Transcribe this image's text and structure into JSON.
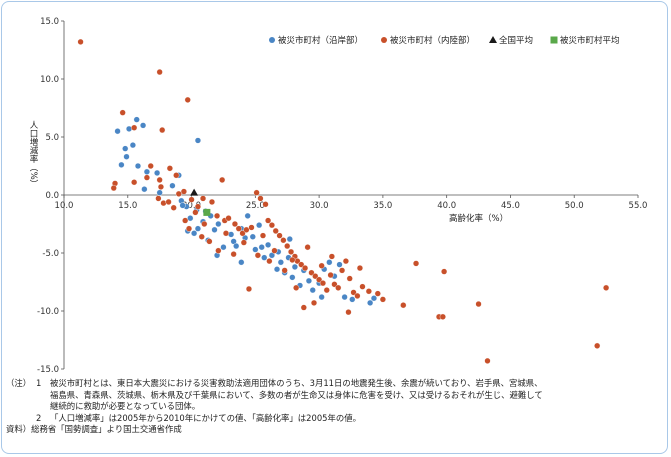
{
  "chart_data": {
    "type": "scatter",
    "title": "",
    "xlabel": "高齢化率（%）",
    "ylabel": "人口増減率（%）",
    "xlim": [
      10.0,
      55.0
    ],
    "ylim": [
      -15.0,
      15.0
    ],
    "x_ticks": [
      "10.0",
      "15.0",
      "20.0",
      "25.0",
      "30.0",
      "35.0",
      "40.0",
      "45.0",
      "50.0",
      "55.0"
    ],
    "y_ticks": [
      "15.0",
      "10.0",
      "5.0",
      "0.0",
      "-5.0",
      "-10.0",
      "-15.0"
    ],
    "grid": false,
    "legend_position": "top-right",
    "series": [
      {
        "name": "被災市町村（沿岸部）",
        "color": "#4a86c5",
        "marker": "circle",
        "points": [
          [
            14.2,
            5.5
          ],
          [
            15.1,
            5.7
          ],
          [
            15.7,
            6.5
          ],
          [
            15.4,
            4.3
          ],
          [
            14.8,
            4.0
          ],
          [
            14.9,
            3.3
          ],
          [
            15.8,
            2.5
          ],
          [
            16.5,
            2.0
          ],
          [
            17.3,
            1.9
          ],
          [
            19.0,
            1.7
          ],
          [
            20.5,
            4.7
          ],
          [
            18.5,
            0.8
          ],
          [
            17.5,
            0.2
          ],
          [
            16.3,
            0.5
          ],
          [
            19.2,
            -0.5
          ],
          [
            19.6,
            -1.0
          ],
          [
            19.7,
            -3.1
          ],
          [
            20.2,
            -3.3
          ],
          [
            20.5,
            -2.9
          ],
          [
            21.1,
            -1.4
          ],
          [
            21.5,
            -1.8
          ],
          [
            22.1,
            -2.5
          ],
          [
            22.5,
            -4.5
          ],
          [
            23.1,
            -3.4
          ],
          [
            23.3,
            -4.0
          ],
          [
            23.5,
            -4.4
          ],
          [
            23.9,
            -5.8
          ],
          [
            24.2,
            -3.7
          ],
          [
            24.4,
            -1.8
          ],
          [
            24.8,
            -3.6
          ],
          [
            25.0,
            -4.7
          ],
          [
            25.3,
            -2.6
          ],
          [
            25.5,
            -4.5
          ],
          [
            25.7,
            -5.4
          ],
          [
            26.0,
            -4.3
          ],
          [
            26.3,
            -5.2
          ],
          [
            26.7,
            -6.4
          ],
          [
            27.0,
            -5.8
          ],
          [
            27.3,
            -6.7
          ],
          [
            27.6,
            -5.4
          ],
          [
            27.9,
            -7.1
          ],
          [
            28.1,
            -6.2
          ],
          [
            28.5,
            -7.8
          ],
          [
            28.8,
            -6.5
          ],
          [
            29.2,
            -7.4
          ],
          [
            29.5,
            -8.2
          ],
          [
            30.0,
            -7.6
          ],
          [
            30.2,
            -8.8
          ],
          [
            30.4,
            -6.4
          ],
          [
            30.8,
            -5.8
          ],
          [
            31.2,
            -7.0
          ],
          [
            31.6,
            -6.0
          ],
          [
            32.0,
            -8.8
          ],
          [
            32.6,
            -9.0
          ],
          [
            34.0,
            -9.3
          ],
          [
            34.3,
            -8.9
          ],
          [
            22.0,
            -5.2
          ],
          [
            21.3,
            -3.9
          ],
          [
            20.9,
            -2.3
          ],
          [
            23.9,
            -2.9
          ],
          [
            26.8,
            -4.9
          ],
          [
            27.7,
            -3.8
          ],
          [
            19.9,
            -2.0
          ],
          [
            19.3,
            -0.9
          ],
          [
            21.8,
            -3.0
          ],
          [
            20.4,
            -1.3
          ],
          [
            16.2,
            6.0
          ],
          [
            14.5,
            2.6
          ]
        ]
      },
      {
        "name": "被災市町村（内陸部）",
        "color": "#c8502a",
        "marker": "circle",
        "points": [
          [
            11.3,
            13.2
          ],
          [
            17.5,
            10.6
          ],
          [
            19.7,
            8.2
          ],
          [
            14.6,
            7.1
          ],
          [
            15.5,
            5.8
          ],
          [
            17.7,
            5.6
          ],
          [
            14.0,
            1.0
          ],
          [
            13.9,
            0.6
          ],
          [
            15.5,
            1.1
          ],
          [
            16.8,
            2.5
          ],
          [
            16.5,
            1.5
          ],
          [
            17.5,
            1.3
          ],
          [
            17.6,
            0.7
          ],
          [
            18.3,
            2.3
          ],
          [
            18.8,
            1.7
          ],
          [
            17.4,
            -0.3
          ],
          [
            17.8,
            -0.7
          ],
          [
            18.2,
            -0.6
          ],
          [
            19.0,
            0.1
          ],
          [
            19.4,
            0.3
          ],
          [
            20.0,
            -0.4
          ],
          [
            20.5,
            -1.0
          ],
          [
            20.9,
            -0.3
          ],
          [
            21.6,
            -0.6
          ],
          [
            22.4,
            1.3
          ],
          [
            22.0,
            -1.8
          ],
          [
            22.6,
            -2.2
          ],
          [
            22.9,
            -2.0
          ],
          [
            23.4,
            -2.5
          ],
          [
            23.7,
            -2.9
          ],
          [
            24.0,
            -3.3
          ],
          [
            24.3,
            -3.0
          ],
          [
            24.7,
            -2.8
          ],
          [
            25.1,
            0.2
          ],
          [
            25.4,
            -0.3
          ],
          [
            25.8,
            -0.8
          ],
          [
            26.0,
            -2.2
          ],
          [
            26.3,
            -2.6
          ],
          [
            26.6,
            -3.1
          ],
          [
            26.9,
            -3.5
          ],
          [
            27.2,
            -3.9
          ],
          [
            27.5,
            -4.4
          ],
          [
            27.8,
            -4.9
          ],
          [
            28.1,
            -5.3
          ],
          [
            28.3,
            -5.7
          ],
          [
            28.6,
            -6.0
          ],
          [
            28.9,
            -6.3
          ],
          [
            29.1,
            -4.5
          ],
          [
            29.4,
            -6.7
          ],
          [
            29.7,
            -7.0
          ],
          [
            30.0,
            -7.3
          ],
          [
            30.3,
            -7.6
          ],
          [
            30.6,
            -8.2
          ],
          [
            30.9,
            -6.9
          ],
          [
            31.2,
            -7.7
          ],
          [
            31.5,
            -8.0
          ],
          [
            31.8,
            -6.5
          ],
          [
            32.1,
            -5.7
          ],
          [
            32.4,
            -7.2
          ],
          [
            32.7,
            -8.4
          ],
          [
            33.0,
            -8.7
          ],
          [
            33.4,
            -7.9
          ],
          [
            33.9,
            -8.3
          ],
          [
            34.6,
            -8.5
          ],
          [
            35.0,
            -9.0
          ],
          [
            36.6,
            -9.5
          ],
          [
            37.6,
            -5.9
          ],
          [
            39.4,
            -10.5
          ],
          [
            39.7,
            -10.5
          ],
          [
            39.8,
            -6.6
          ],
          [
            42.5,
            -9.4
          ],
          [
            43.2,
            -14.3
          ],
          [
            51.8,
            -13.0
          ],
          [
            52.5,
            -8.0
          ],
          [
            19.8,
            -2.9
          ],
          [
            20.8,
            -3.6
          ],
          [
            21.4,
            -4.0
          ],
          [
            22.1,
            -4.8
          ],
          [
            23.3,
            -5.1
          ],
          [
            24.5,
            -8.1
          ],
          [
            25.2,
            -5.2
          ],
          [
            26.1,
            -5.7
          ],
          [
            27.3,
            -6.5
          ],
          [
            28.2,
            -8.0
          ],
          [
            29.6,
            -9.3
          ],
          [
            32.3,
            -10.1
          ],
          [
            20.3,
            -1.5
          ],
          [
            19.5,
            -2.2
          ],
          [
            18.6,
            -1.1
          ],
          [
            21.0,
            -2.5
          ],
          [
            22.7,
            -3.3
          ],
          [
            24.1,
            -4.1
          ],
          [
            25.6,
            -3.5
          ],
          [
            26.5,
            -4.8
          ],
          [
            27.9,
            -5.6
          ],
          [
            28.8,
            -9.7
          ],
          [
            30.2,
            -6.1
          ],
          [
            31.0,
            -5.3
          ],
          [
            33.2,
            -6.3
          ]
        ]
      },
      {
        "name": "全国平均",
        "color": "#1a1a1a",
        "marker": "triangle",
        "points": [
          [
            20.2,
            0.2
          ]
        ]
      },
      {
        "name": "被災市町村平均",
        "color": "#5aa84a",
        "marker": "square",
        "points": [
          [
            21.2,
            -1.5
          ]
        ]
      }
    ]
  },
  "notes": {
    "head": "（注）",
    "items": [
      {
        "num": "1",
        "lines": [
          "被災市町村とは、東日本大震災における災害救助法適用団体のうち、3月11日の地震発生後、余震が続いており、岩手県、宮城県、",
          "福島県、青森県、茨城県、栃木県及び千葉県において、多数の者が生命又は身体に危害を受け、又は受けるおそれが生じ、避難して",
          "継続的に救助が必要となっている団体。"
        ]
      },
      {
        "num": "2",
        "lines": [
          "「人口増減率」は2005年から2010年にかけての値、「高齢化率」は2005年の値。"
        ]
      }
    ],
    "source": "資料）総務省「国勢調査」より国土交通省作成"
  }
}
